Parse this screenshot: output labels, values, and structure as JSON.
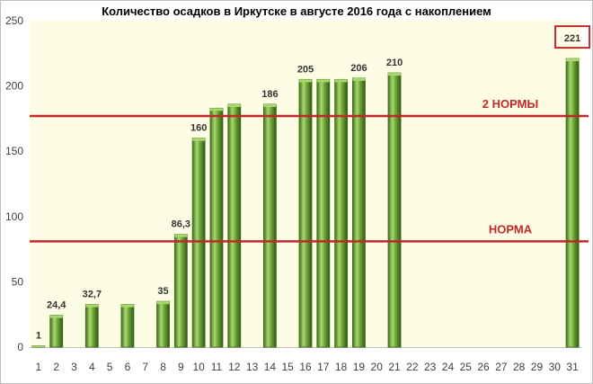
{
  "chart_data": {
    "type": "bar",
    "title": "Количество осадков в Иркутске в августе 2016 года с накоплением",
    "xlabel": "",
    "ylabel": "",
    "ylim": [
      0,
      250
    ],
    "yticks": [
      0,
      50,
      100,
      150,
      200,
      250
    ],
    "categories": [
      "1",
      "2",
      "3",
      "4",
      "5",
      "6",
      "7",
      "8",
      "9",
      "10",
      "11",
      "12",
      "13",
      "14",
      "15",
      "16",
      "17",
      "18",
      "19",
      "20",
      "21",
      "22",
      "23",
      "24",
      "25",
      "26",
      "27",
      "28",
      "29",
      "30",
      "31"
    ],
    "values": [
      1,
      24.4,
      null,
      32.7,
      null,
      32.7,
      null,
      35,
      86.3,
      160,
      183,
      186,
      null,
      186,
      null,
      205,
      205,
      205,
      206,
      null,
      210,
      null,
      null,
      null,
      null,
      null,
      null,
      null,
      null,
      null,
      221
    ],
    "data_labels": [
      {
        "day": "1",
        "text": "1"
      },
      {
        "day": "2",
        "text": "24,4"
      },
      {
        "day": "4",
        "text": "32,7"
      },
      {
        "day": "8",
        "text": "35"
      },
      {
        "day": "9",
        "text": "86,3"
      },
      {
        "day": "10",
        "text": "160"
      },
      {
        "day": "14",
        "text": "186"
      },
      {
        "day": "16",
        "text": "205"
      },
      {
        "day": "19",
        "text": "206"
      },
      {
        "day": "21",
        "text": "210"
      },
      {
        "day": "31",
        "text": "221",
        "boxed": true
      }
    ],
    "reference_lines": [
      {
        "label": "НОРМА",
        "value": 81
      },
      {
        "label": "2 НОРМЫ",
        "value": 177
      }
    ],
    "grid": false,
    "bar_color": "#5a8f2a",
    "bar_highlight": "#a9d86e",
    "reference_color": "#c0292a",
    "plot_background": "#fdfde6"
  }
}
